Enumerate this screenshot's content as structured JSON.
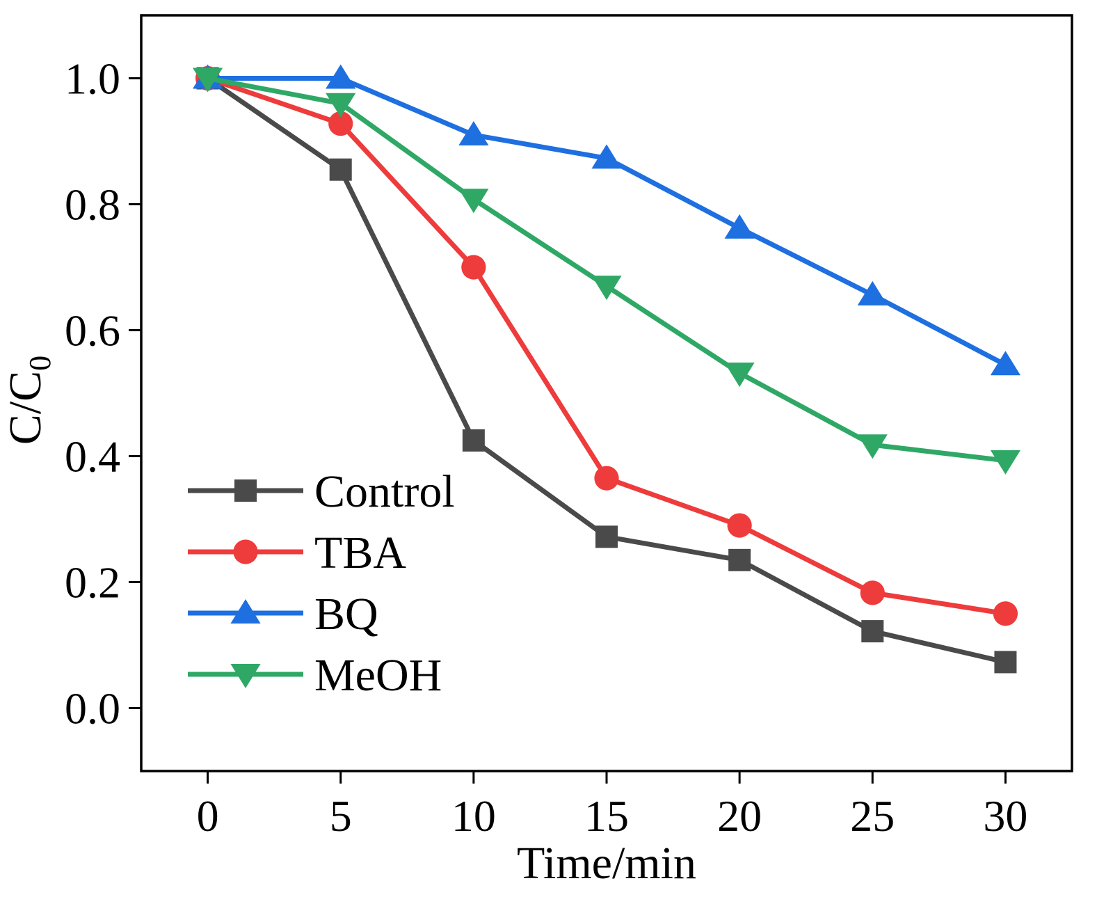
{
  "chart_data": {
    "type": "line",
    "x": [
      0,
      5,
      10,
      15,
      20,
      25,
      30
    ],
    "xlabel": "Time/min",
    "ylabel": {
      "main": "C/C",
      "subscript": "0"
    },
    "xlim": [
      -2.5,
      32.5
    ],
    "ylim": [
      -0.1,
      1.1
    ],
    "x_ticks": [
      0,
      5,
      10,
      15,
      20,
      25,
      30
    ],
    "x_tick_labels": [
      "0",
      "5",
      "10",
      "15",
      "20",
      "25",
      "30"
    ],
    "y_ticks": [
      0.0,
      0.2,
      0.4,
      0.6,
      0.8,
      1.0
    ],
    "y_tick_labels": [
      "0.0",
      "0.2",
      "0.4",
      "0.6",
      "0.8",
      "1.0"
    ],
    "grid": false,
    "legend_position": "bottom-left",
    "series": [
      {
        "name": "Control",
        "color": "#4a4a4a",
        "marker": "square",
        "values": [
          1.0,
          0.855,
          0.425,
          0.272,
          0.235,
          0.122,
          0.073
        ]
      },
      {
        "name": "TBA",
        "color": "#ee3b3b",
        "marker": "circle",
        "values": [
          1.0,
          0.928,
          0.7,
          0.365,
          0.29,
          0.183,
          0.15
        ]
      },
      {
        "name": "BQ",
        "color": "#1e6fe0",
        "marker": "triangle-up",
        "values": [
          1.0,
          1.0,
          0.91,
          0.873,
          0.762,
          0.656,
          0.545
        ]
      },
      {
        "name": "MeOH",
        "color": "#2fa866",
        "marker": "triangle-down",
        "values": [
          1.0,
          0.96,
          0.808,
          0.67,
          0.532,
          0.418,
          0.393
        ]
      }
    ]
  }
}
